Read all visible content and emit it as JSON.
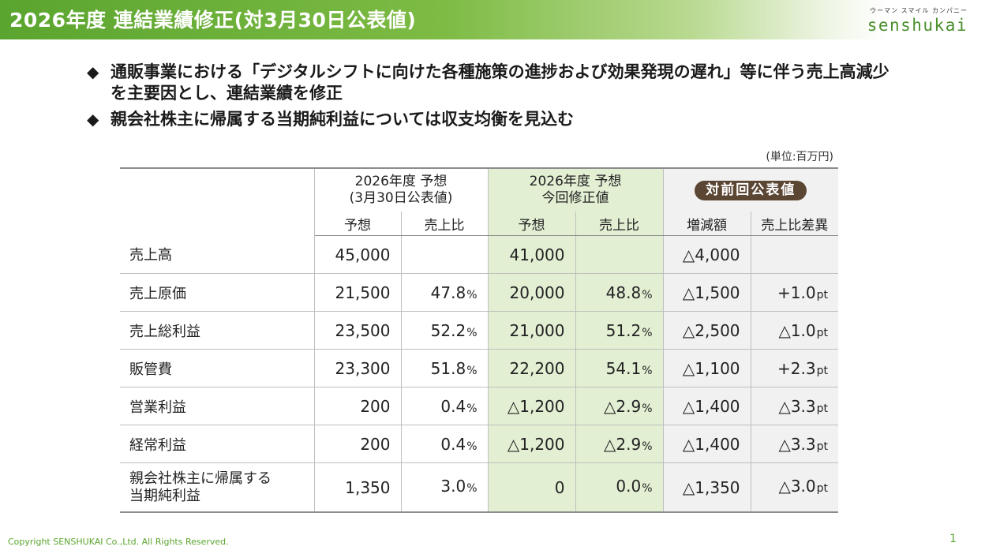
{
  "header": {
    "title": "2026年度 連結業績修正(対3月30日公表値)",
    "logo_tagline": "ウーマン スマイル カンパニー",
    "logo_word": "senshukai",
    "brand_color": "#5aa52f"
  },
  "bullets": [
    "通販事業における「デジタルシフトに向けた各種施策の進捗および効果発現の遅れ」等に伴う売上高減少を主要因とし、連結業績を修正",
    "親会社株主に帰属する当期純利益については収支均衡を見込む"
  ],
  "bullet_symbol": "◆",
  "unit_note": "(単位:百万円)",
  "table": {
    "groups": {
      "previous_line1": "2026年度 予想",
      "previous_line2": "(3月30日公表値)",
      "revised_line1": "2026年度 予想",
      "revised_line2": "今回修正値",
      "vs_previous": "対前回公表値"
    },
    "subheaders": [
      "予想",
      "売上比",
      "予想",
      "売上比",
      "増減額",
      "売上比差異"
    ],
    "rows": [
      {
        "label_line1": "売上高",
        "label_line2": "",
        "prev_forecast": "45,000",
        "prev_ratio": "",
        "rev_forecast": "41,000",
        "rev_ratio": "",
        "change": "△4,000",
        "ratio_diff": ""
      },
      {
        "label_line1": "売上原価",
        "label_line2": "",
        "prev_forecast": "21,500",
        "prev_ratio": "47.8",
        "rev_forecast": "20,000",
        "rev_ratio": "48.8",
        "change": "△1,500",
        "ratio_diff": "+1.0"
      },
      {
        "label_line1": "売上総利益",
        "label_line2": "",
        "prev_forecast": "23,500",
        "prev_ratio": "52.2",
        "rev_forecast": "21,000",
        "rev_ratio": "51.2",
        "change": "△2,500",
        "ratio_diff": "△1.0"
      },
      {
        "label_line1": "販管費",
        "label_line2": "",
        "prev_forecast": "23,300",
        "prev_ratio": "51.8",
        "rev_forecast": "22,200",
        "rev_ratio": "54.1",
        "change": "△1,100",
        "ratio_diff": "+2.3"
      },
      {
        "label_line1": "営業利益",
        "label_line2": "",
        "prev_forecast": "200",
        "prev_ratio": "0.4",
        "rev_forecast": "△1,200",
        "rev_ratio": "△2.9",
        "change": "△1,400",
        "ratio_diff": "△3.3"
      },
      {
        "label_line1": "経常利益",
        "label_line2": "",
        "prev_forecast": "200",
        "prev_ratio": "0.4",
        "rev_forecast": "△1,200",
        "rev_ratio": "△2.9",
        "change": "△1,400",
        "ratio_diff": "△3.3"
      },
      {
        "label_line1": "親会社株主に帰属する",
        "label_line2": "当期純利益",
        "prev_forecast": "1,350",
        "prev_ratio": "3.0",
        "rev_forecast": "0",
        "rev_ratio": "0.0",
        "change": "△1,350",
        "ratio_diff": "△3.0"
      }
    ],
    "percent_unit": "%",
    "pt_unit": "pt"
  },
  "footer": {
    "copyright": "Copyright SENSHUKAI Co.,Ltd. All Rights Reserved.",
    "page_number": "1"
  },
  "colors": {
    "revised_column_bg": "#e2efd3",
    "comparison_column_bg": "#f1f1f1",
    "pill_bg": "#5b4634"
  }
}
